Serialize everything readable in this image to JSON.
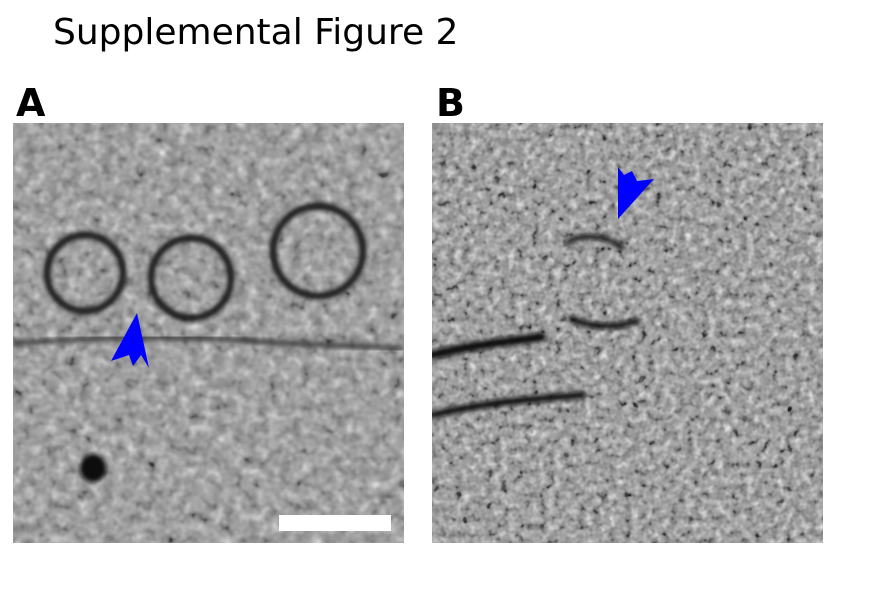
{
  "figure": {
    "title": "Supplemental Figure 2",
    "panels": [
      {
        "label": "A",
        "image": "cryo-electron tomogram slice of vesicles near membrane",
        "arrowhead_color": "#0000ff",
        "arrowhead_direction": "up",
        "has_scale_bar": true,
        "scale_bar_color": "#ffffff"
      },
      {
        "label": "B",
        "image": "cryo-electron tomogram slice, denser noisy texture",
        "arrowhead_color": "#0000ff",
        "arrowhead_direction": "down-left",
        "has_scale_bar": false
      }
    ]
  }
}
